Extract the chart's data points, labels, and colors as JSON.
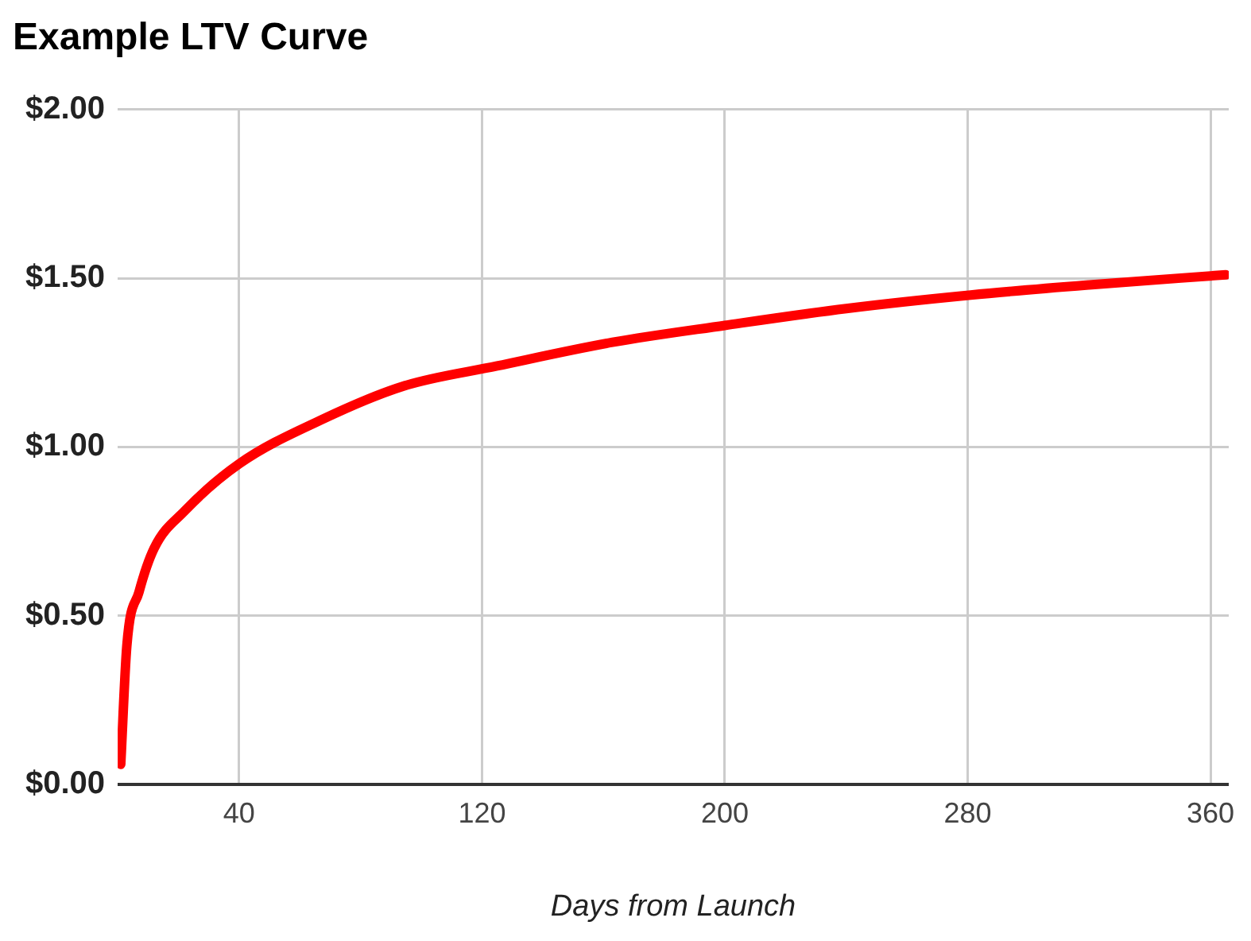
{
  "chart_data": {
    "type": "line",
    "title": "Example LTV Curve",
    "xlabel": "Days from Launch",
    "x": [
      1,
      3,
      7,
      12,
      22,
      40,
      67,
      94,
      125,
      163,
      200,
      240,
      281,
      320,
      365
    ],
    "series": [
      {
        "color": "#ff0000",
        "values": [
          0.06,
          0.41,
          0.57,
          0.7,
          0.81,
          0.95,
          1.08,
          1.18,
          1.24,
          1.31,
          1.36,
          1.41,
          1.45,
          1.48,
          1.51
        ]
      }
    ],
    "xlim": [
      0,
      366
    ],
    "xticks": [
      40,
      120,
      200,
      280,
      360
    ],
    "ylim": [
      0,
      2
    ],
    "yticks": [
      {
        "value": 0,
        "label": "$0.00"
      },
      {
        "value": 0.5,
        "label": "$0.50"
      },
      {
        "value": 1,
        "label": "$1.00"
      },
      {
        "value": 1.5,
        "label": "$1.50"
      },
      {
        "value": 2,
        "label": "$2.00"
      }
    ],
    "grid": true,
    "legend": false,
    "marker": "none",
    "line_style": "solid"
  }
}
